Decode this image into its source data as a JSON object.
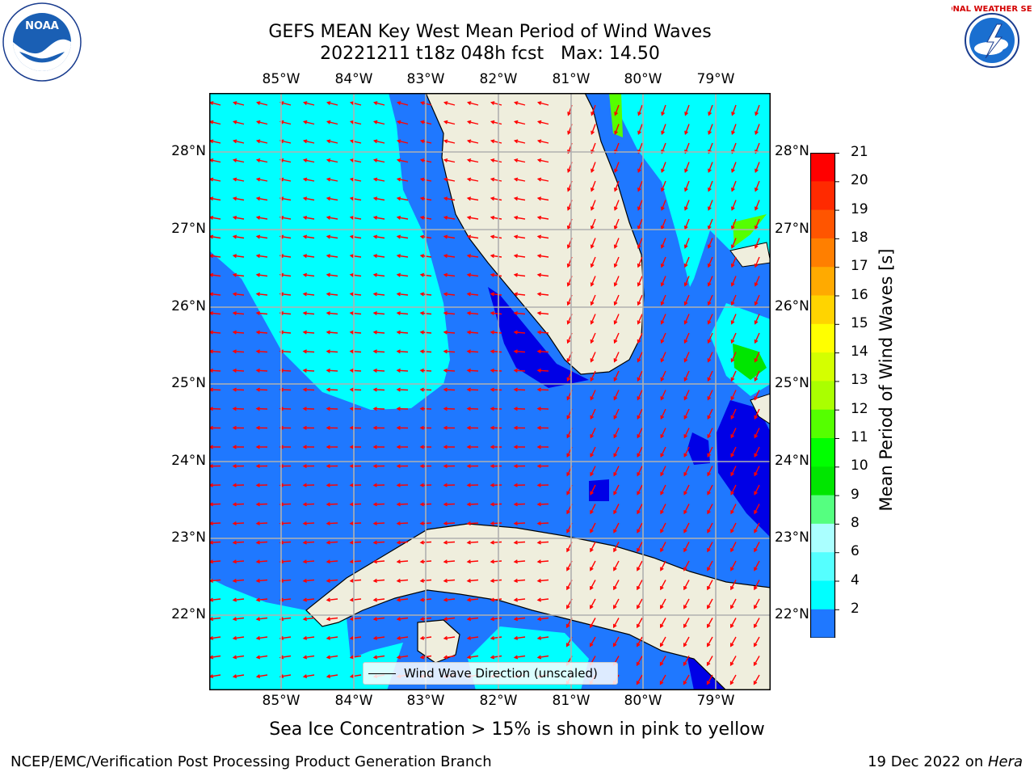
{
  "title": {
    "line1": "GEFS MEAN Key West Mean Period of Wind Waves",
    "line2": "20221211 t18z 048h fcst   Max: 14.50"
  },
  "map": {
    "lon_ticks": [
      "85°W",
      "84°W",
      "83°W",
      "82°W",
      "81°W",
      "80°W",
      "79°W"
    ],
    "lat_ticks": [
      "28°N",
      "27°N",
      "26°N",
      "25°N",
      "24°N",
      "23°N",
      "22°N"
    ],
    "legend_text": "Wind Wave Direction (unscaled)",
    "colors": {
      "land": "#efeedd",
      "range_2_4": "#1f78ff",
      "range_lt2": "#0000e6",
      "range_4_6": "#00ffff",
      "range_6_8": "#55ffff",
      "arrow": "#ff0000",
      "grid": "#b0b0b0"
    }
  },
  "colorbar": {
    "label": "Mean Period of Wind Waves [s]",
    "ticks": [
      "21",
      "20",
      "19",
      "18",
      "17",
      "16",
      "15",
      "14",
      "13",
      "12",
      "11",
      "10",
      "9",
      "8",
      "6",
      "4",
      "2"
    ],
    "bands": [
      "#ff0000",
      "#ff2a00",
      "#ff5500",
      "#ff7f00",
      "#ffaa00",
      "#ffd400",
      "#ffff00",
      "#d4ff00",
      "#aaff00",
      "#55ff00",
      "#00ff00",
      "#00e600",
      "#55ff80",
      "#aaffff",
      "#55ffff",
      "#00ffff",
      "#1f78ff"
    ],
    "underflow_color": "#0000e6"
  },
  "caption": "Sea Ice Concentration > 15% is shown in pink to yellow",
  "footer": {
    "left": "NCEP/EMC/Verification Post Processing Product Generation Branch",
    "right_prefix": "19 Dec 2022 on ",
    "right_host": "Hera"
  },
  "logos": {
    "noaa_text": "NOAA",
    "nws_text": "NATIONAL WEATHER SERVICE"
  }
}
